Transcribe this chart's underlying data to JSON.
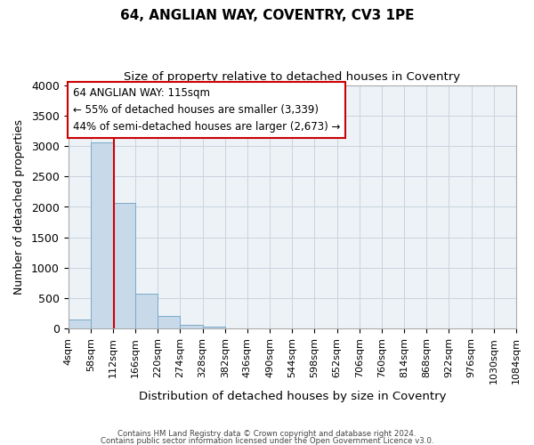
{
  "title": "64, ANGLIAN WAY, COVENTRY, CV3 1PE",
  "subtitle": "Size of property relative to detached houses in Coventry",
  "xlabel": "Distribution of detached houses by size in Coventry",
  "ylabel": "Number of detached properties",
  "bin_edges": [
    4,
    58,
    112,
    166,
    220,
    274,
    328,
    382,
    436,
    490,
    544,
    598,
    652,
    706,
    760,
    814,
    868,
    922,
    976,
    1030,
    1084
  ],
  "bin_labels": [
    "4sqm",
    "58sqm",
    "112sqm",
    "166sqm",
    "220sqm",
    "274sqm",
    "328sqm",
    "382sqm",
    "436sqm",
    "490sqm",
    "544sqm",
    "598sqm",
    "652sqm",
    "706sqm",
    "760sqm",
    "814sqm",
    "868sqm",
    "922sqm",
    "976sqm",
    "1030sqm",
    "1084sqm"
  ],
  "bar_heights": [
    150,
    3060,
    2065,
    570,
    205,
    65,
    35,
    0,
    0,
    0,
    0,
    0,
    0,
    0,
    0,
    0,
    0,
    0,
    0,
    0
  ],
  "bar_color": "#c8d9ea",
  "bar_edge_color": "#7aaac8",
  "vline_x": 115,
  "vline_color": "#cc0000",
  "ylim": [
    0,
    4000
  ],
  "yticks": [
    0,
    500,
    1000,
    1500,
    2000,
    2500,
    3000,
    3500,
    4000
  ],
  "annotation_title": "64 ANGLIAN WAY: 115sqm",
  "annotation_line1": "← 55% of detached houses are smaller (3,339)",
  "annotation_line2": "44% of semi-detached houses are larger (2,673) →",
  "annotation_box_color": "#ffffff",
  "annotation_box_edge": "#cc0000",
  "footer_line1": "Contains HM Land Registry data © Crown copyright and database right 2024.",
  "footer_line2": "Contains public sector information licensed under the Open Government Licence v3.0.",
  "plot_bg_color": "#edf2f7",
  "grid_color": "#c8d4de",
  "title_fontsize": 11,
  "subtitle_fontsize": 9.5
}
